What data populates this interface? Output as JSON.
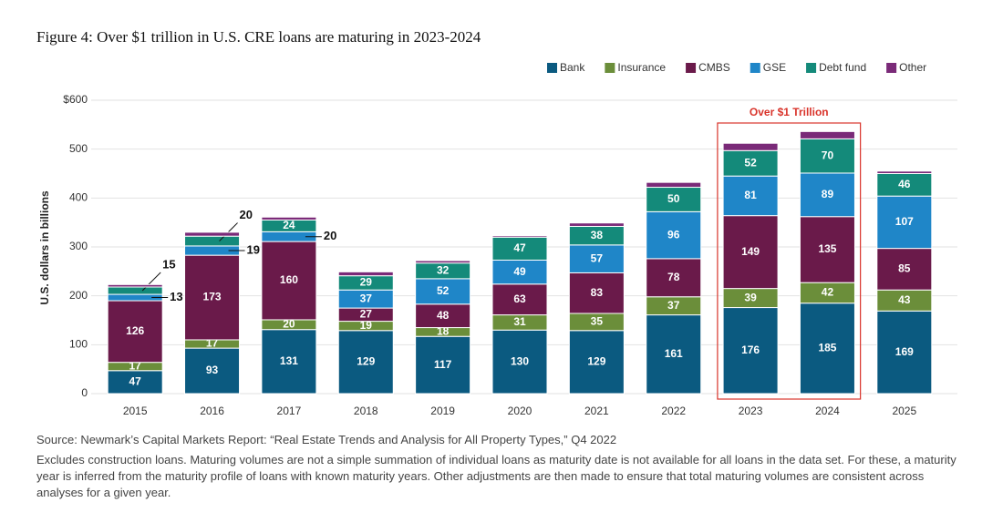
{
  "chart_data": {
    "type": "stacked_bar",
    "title": "Figure 4: Over $1 trillion in U.S. CRE loans are maturing in 2023-2024",
    "y_label": "U.S. dollars in billions",
    "annotation": "Over $1 Trillion",
    "annotation_color": "#d9342b",
    "source": "Source: Newmark’s Capital Markets Report: “Real Estate Trends and Analysis for All Property Types,” Q4 2022",
    "note": "Excludes construction loans. Maturing volumes are not a simple summation of individual loans as maturity date is not available for all loans in the data set. For these, a maturity year is inferred from the maturity profile of loans with known maturity years. Other adjustments are then made to ensure that total maturing volumes are consistent across analyses for a given year.",
    "categories": [
      "2015",
      "2016",
      "2017",
      "2018",
      "2019",
      "2020",
      "2021",
      "2022",
      "2023",
      "2024",
      "2025"
    ],
    "highlight": [
      "2023",
      "2024"
    ],
    "series": [
      {
        "name": "Bank",
        "color": "#0b5a80",
        "data_labels": true,
        "values": [
          47,
          93,
          131,
          129,
          117,
          130,
          129,
          161,
          176,
          185,
          169
        ]
      },
      {
        "name": "Insurance",
        "color": "#6b8e3a",
        "data_labels": true,
        "values": [
          17,
          17,
          20,
          19,
          18,
          31,
          35,
          37,
          39,
          42,
          43
        ]
      },
      {
        "name": "CMBS",
        "color": "#6a1a4a",
        "data_labels": true,
        "values": [
          126,
          173,
          160,
          27,
          48,
          63,
          83,
          78,
          149,
          135,
          85
        ]
      },
      {
        "name": "GSE",
        "color": "#1f86c8",
        "data_labels": true,
        "values": [
          13,
          19,
          20,
          37,
          52,
          49,
          57,
          96,
          81,
          89,
          107
        ]
      },
      {
        "name": "Debt fund",
        "color": "#148a7a",
        "data_labels": true,
        "values": [
          15,
          20,
          24,
          29,
          32,
          47,
          38,
          50,
          52,
          70,
          46
        ]
      },
      {
        "name": "Other",
        "color": "#7a2a78",
        "data_labels": false,
        "values": [
          5,
          8,
          6,
          8,
          5,
          3,
          7,
          10,
          15,
          15,
          5
        ]
      }
    ],
    "ylim": [
      0,
      600
    ],
    "yticks": [
      0,
      100,
      200,
      300,
      400,
      500,
      {
        "value": 600,
        "label": "$600"
      }
    ],
    "grid": true,
    "legend": "top-right"
  }
}
